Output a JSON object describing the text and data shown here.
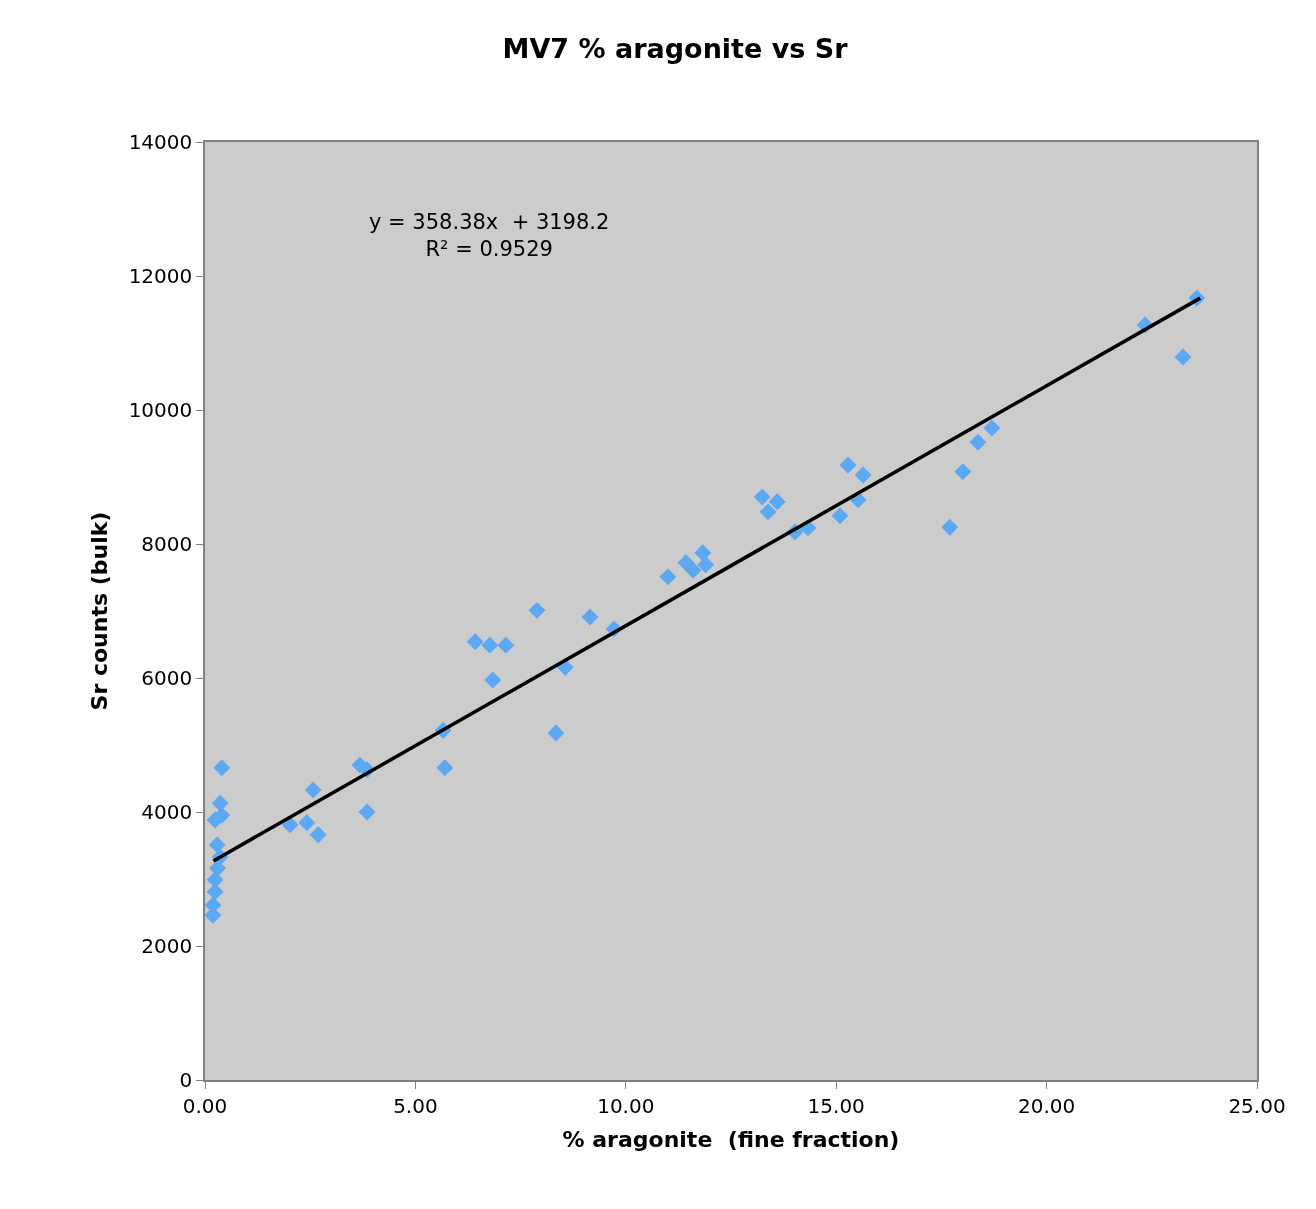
{
  "chart_data": {
    "type": "scatter",
    "title": "MV7 % aragonite vs Sr",
    "xlabel": "% aragonite  (fine fraction)",
    "ylabel": "Sr counts (bulk)",
    "series": [
      {
        "color": "#5ca8f2",
        "marker": "diamond",
        "x": [
          0.4,
          0.36,
          0.4,
          0.24,
          0.36,
          0.29,
          0.3,
          0.24,
          0.24,
          0.19,
          0.19,
          2.02,
          2.42,
          2.57,
          2.69,
          3.68,
          3.85,
          3.85,
          5.66,
          5.7,
          6.42,
          6.77,
          6.84,
          7.15,
          7.89,
          8.34,
          8.56,
          9.15,
          9.72,
          11.0,
          11.43,
          11.6,
          11.83,
          11.9,
          13.24,
          13.38,
          13.6,
          14.02,
          14.33,
          15.09,
          15.28,
          15.64,
          15.52,
          17.7,
          18.01,
          18.37,
          18.7,
          22.34,
          23.24,
          23.57
        ],
        "values": [
          4660,
          4130,
          3950,
          3880,
          3330,
          3510,
          3160,
          2990,
          2810,
          2610,
          2460,
          3810,
          3840,
          4330,
          3660,
          4700,
          4630,
          4000,
          5220,
          4660,
          6540,
          6490,
          5970,
          6490,
          7010,
          5180,
          6160,
          6910,
          6730,
          7510,
          7720,
          7610,
          7870,
          7690,
          8700,
          8480,
          8630,
          8180,
          8240,
          8420,
          9180,
          9030,
          8660,
          8250,
          9080,
          9520,
          9730,
          11270,
          10790,
          11670
        ]
      },
      {
        "type": "line",
        "color": "#000000",
        "marker": "none",
        "line_style": "solid",
        "x": [
          0.2,
          23.65
        ],
        "values": [
          3270,
          11670
        ]
      }
    ],
    "annotations": [
      "y = 358.38x  + 3198.2",
      "R² = 0.9529"
    ],
    "xlim": [
      0,
      25
    ],
    "xticks": [
      {
        "value": 0,
        "label": "0.00"
      },
      {
        "value": 5,
        "label": "5.00"
      },
      {
        "value": 10,
        "label": "10.00"
      },
      {
        "value": 15,
        "label": "15.00"
      },
      {
        "value": 20,
        "label": "20.00"
      },
      {
        "value": 25,
        "label": "25.00"
      }
    ],
    "ylim": [
      0,
      14000
    ],
    "yticks": [
      0,
      2000,
      4000,
      6000,
      8000,
      10000,
      12000,
      14000
    ],
    "grid": false
  }
}
